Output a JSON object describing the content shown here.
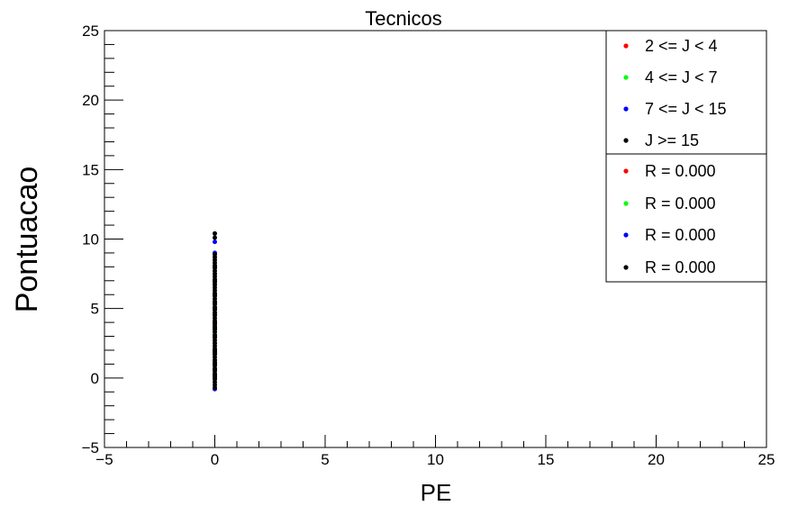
{
  "chart_data": {
    "type": "scatter",
    "title": "Tecnicos",
    "xlabel": "PE",
    "ylabel": "Pontuacao",
    "xlim": [
      -5,
      25
    ],
    "ylim": [
      -5,
      25
    ],
    "x_ticks": [
      -5,
      0,
      5,
      10,
      15,
      20,
      25
    ],
    "y_ticks": [
      -5,
      0,
      5,
      10,
      15,
      20,
      25
    ],
    "x_tick_labels": [
      "−5",
      "0",
      "5",
      "10",
      "15",
      "20",
      "25"
    ],
    "y_tick_labels": [
      "−5",
      "0",
      "5",
      "10",
      "15",
      "20",
      "25"
    ],
    "grid": false,
    "legend_position": "top-right",
    "series": [
      {
        "name": "2 <= J < 4",
        "color": "#ff0000",
        "x": [
          0,
          0,
          0,
          0,
          0
        ],
        "y": [
          1.2,
          2.5,
          3.8,
          4.6,
          6.0
        ]
      },
      {
        "name": "4 <= J < 7",
        "color": "#00ff00",
        "x": [
          0,
          0,
          0,
          0
        ],
        "y": [
          2.0,
          3.4,
          5.1,
          6.8
        ]
      },
      {
        "name": "7 <= J < 15",
        "color": "#0000ff",
        "x": [
          0,
          0,
          0,
          0,
          0,
          0
        ],
        "y": [
          -0.8,
          0.3,
          4.0,
          7.5,
          9.0,
          9.8
        ]
      },
      {
        "name": "J >= 15",
        "color": "#000000",
        "x": [
          0,
          0,
          0,
          0,
          0,
          0,
          0,
          0,
          0,
          0,
          0,
          0,
          0,
          0,
          0,
          0,
          0,
          0,
          0,
          0,
          0,
          0,
          0,
          0,
          0,
          0,
          0,
          0,
          0,
          0,
          0,
          0,
          0,
          0,
          0,
          0,
          0,
          0,
          0,
          0,
          0,
          0,
          0,
          0,
          0,
          0,
          0,
          0,
          0,
          0,
          0,
          0,
          0,
          0,
          0,
          0,
          0,
          0,
          0,
          0,
          0,
          0,
          0,
          0,
          0
        ],
        "y": [
          -0.7,
          -0.5,
          -0.3,
          -0.1,
          0.1,
          0.3,
          0.5,
          0.7,
          0.9,
          1.1,
          1.3,
          1.5,
          1.7,
          1.9,
          2.1,
          2.3,
          2.5,
          2.7,
          2.9,
          3.1,
          3.3,
          3.5,
          3.7,
          3.9,
          4.1,
          4.3,
          4.5,
          4.7,
          4.9,
          5.1,
          5.3,
          5.5,
          5.7,
          5.9,
          6.1,
          6.3,
          6.5,
          6.7,
          6.9,
          7.1,
          7.3,
          7.5,
          7.7,
          7.9,
          8.1,
          8.3,
          8.5,
          8.7,
          8.9,
          0.0,
          0.6,
          1.0,
          2.0,
          3.0,
          4.0,
          5.0,
          6.0,
          7.0,
          8.0,
          0.2,
          1.8,
          3.6,
          5.4,
          10.1,
          10.4
        ]
      }
    ],
    "legend": {
      "entries": [
        {
          "label": "2 <= J < 4",
          "color": "#ff0000"
        },
        {
          "label": "4 <= J < 7",
          "color": "#00ff00"
        },
        {
          "label": "7 <= J < 15",
          "color": "#0000ff"
        },
        {
          "label": "J >= 15",
          "color": "#000000"
        }
      ],
      "stats": [
        {
          "label": "R = 0.000",
          "color": "#ff0000"
        },
        {
          "label": "R = 0.000",
          "color": "#00ff00"
        },
        {
          "label": "R = 0.000",
          "color": "#0000ff"
        },
        {
          "label": "R = 0.000",
          "color": "#000000"
        }
      ]
    }
  }
}
